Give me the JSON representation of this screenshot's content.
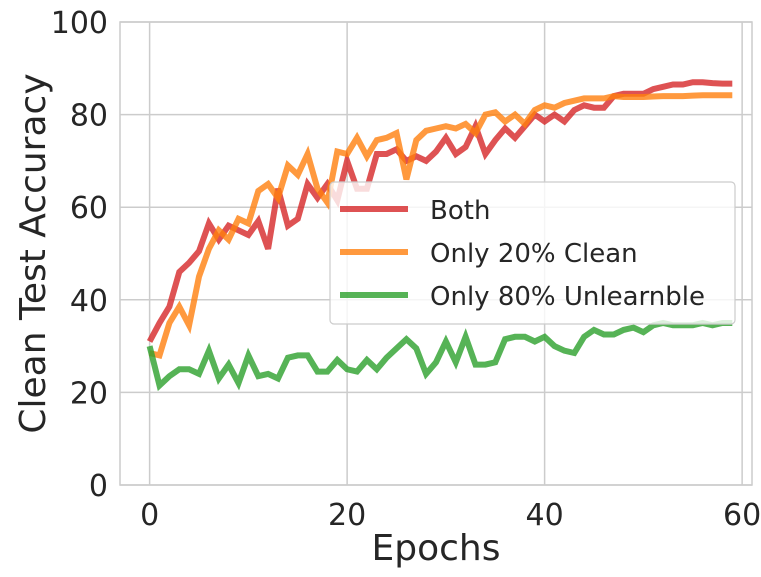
{
  "chart_data": {
    "type": "line",
    "title": "",
    "xlabel": "Epochs",
    "ylabel": "Clean Test Accuracy",
    "xlim": [
      -3,
      61
    ],
    "ylim": [
      0,
      100
    ],
    "xticks": [
      0,
      20,
      40,
      60
    ],
    "yticks": [
      0,
      20,
      40,
      60,
      80,
      100
    ],
    "grid": true,
    "legend_position": "center-right",
    "series": [
      {
        "name": "Both",
        "color": "#d62728",
        "x": [
          0,
          1,
          2,
          3,
          4,
          5,
          6,
          7,
          8,
          9,
          10,
          11,
          12,
          13,
          14,
          15,
          16,
          17,
          18,
          19,
          20,
          21,
          22,
          23,
          24,
          25,
          26,
          27,
          28,
          29,
          30,
          31,
          32,
          33,
          34,
          35,
          36,
          37,
          38,
          39,
          40,
          41,
          42,
          43,
          44,
          45,
          46,
          47,
          48,
          49,
          50,
          51,
          52,
          53,
          54,
          55,
          56,
          57,
          58,
          59
        ],
        "values": [
          31,
          35,
          38.5,
          46,
          48,
          50.5,
          56.5,
          53,
          56,
          55,
          54,
          57,
          51,
          64,
          56,
          57.5,
          65,
          62,
          65,
          61.5,
          70,
          64,
          64,
          71.5,
          71.5,
          72.5,
          70,
          71,
          70,
          72,
          75,
          71.5,
          73,
          77.5,
          71.5,
          74.5,
          77,
          75,
          77.5,
          80,
          78.5,
          80,
          78.5,
          81,
          82,
          81.5,
          81.5,
          84,
          84.5,
          84.5,
          84.5,
          85.5,
          86,
          86.5,
          86.5,
          87,
          87,
          86.8,
          86.7,
          86.7
        ]
      },
      {
        "name": "Only 20% Clean",
        "color": "#ff7f0e",
        "x": [
          0,
          1,
          2,
          3,
          4,
          5,
          6,
          7,
          8,
          9,
          10,
          11,
          12,
          13,
          14,
          15,
          16,
          17,
          18,
          19,
          20,
          21,
          22,
          23,
          24,
          25,
          26,
          27,
          28,
          29,
          30,
          31,
          32,
          33,
          34,
          35,
          36,
          37,
          38,
          39,
          40,
          41,
          42,
          43,
          44,
          45,
          46,
          47,
          48,
          49,
          50,
          51,
          52,
          53,
          54,
          55,
          56,
          57,
          58,
          59
        ],
        "values": [
          28.5,
          28,
          35,
          38.5,
          34.5,
          45,
          51,
          55,
          53,
          57.5,
          56.5,
          63.5,
          65,
          62,
          69,
          67,
          71.5,
          64,
          61,
          72,
          71.5,
          75,
          71,
          74.5,
          75,
          76,
          66,
          74.5,
          76.5,
          77,
          77.5,
          77,
          78,
          76,
          80,
          80.5,
          78.5,
          80,
          78,
          81,
          82,
          81.5,
          82.5,
          83,
          83.5,
          83.5,
          83.5,
          84,
          83.8,
          83.8,
          83.8,
          83.9,
          84,
          84,
          84,
          84.1,
          84.2,
          84.2,
          84.2,
          84.2
        ]
      },
      {
        "name": "Only 80% Unlearnble",
        "color": "#2ca02c",
        "x": [
          0,
          1,
          2,
          3,
          4,
          5,
          6,
          7,
          8,
          9,
          10,
          11,
          12,
          13,
          14,
          15,
          16,
          17,
          18,
          19,
          20,
          21,
          22,
          23,
          24,
          25,
          26,
          27,
          28,
          29,
          30,
          31,
          32,
          33,
          34,
          35,
          36,
          37,
          38,
          39,
          40,
          41,
          42,
          43,
          44,
          45,
          46,
          47,
          48,
          49,
          50,
          51,
          52,
          53,
          54,
          55,
          56,
          57,
          58,
          59
        ],
        "values": [
          30,
          21.5,
          23.5,
          25,
          25,
          24,
          29,
          23,
          26,
          22,
          28,
          23.5,
          24,
          23,
          27.5,
          28,
          28,
          24.5,
          24.5,
          27,
          25,
          24.5,
          27,
          25,
          27.5,
          29.5,
          31.5,
          29.5,
          24,
          26.5,
          31,
          26.5,
          32,
          26,
          26,
          26.5,
          31.5,
          32,
          32,
          31,
          32,
          30,
          29,
          28.5,
          32,
          33.5,
          32.5,
          32.5,
          33.5,
          34,
          33,
          34.5,
          35,
          34.5,
          34.5,
          34.5,
          35,
          34.5,
          35,
          35
        ]
      }
    ]
  }
}
